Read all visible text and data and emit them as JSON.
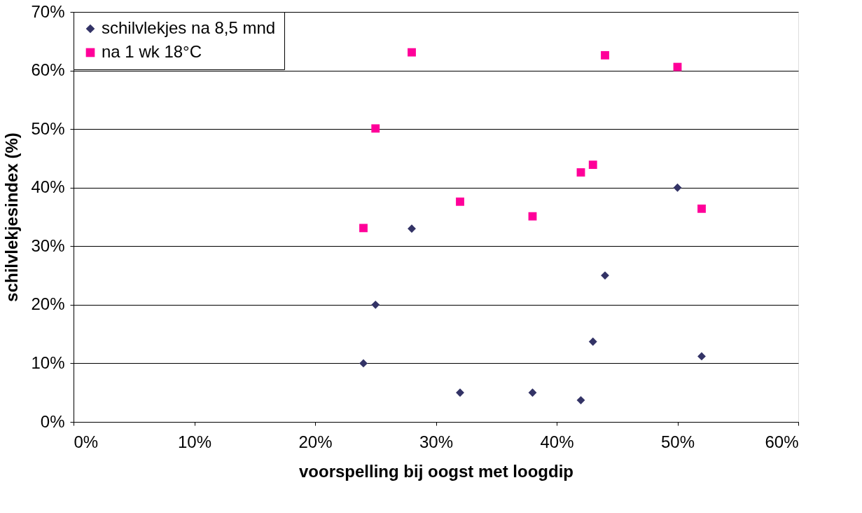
{
  "chart_data": {
    "type": "scatter",
    "xlabel": "voorspelling bij oogst met loogdip",
    "ylabel": "schilvlekjesindex (%)",
    "x": [
      24,
      25,
      28,
      32,
      38,
      42,
      43,
      44,
      50,
      52
    ],
    "series": [
      {
        "name": "schilvlekjes na 8,5 mnd",
        "color": "#333366",
        "marker": "diamond",
        "values": [
          10,
          20,
          33,
          5,
          5,
          3.7,
          13.7,
          25,
          40,
          11.2
        ]
      },
      {
        "name": "na 1 wk 18°C",
        "color": "#ff0099",
        "marker": "square",
        "values": [
          33.1,
          50.1,
          63.1,
          37.6,
          35.1,
          42.6,
          43.9,
          62.6,
          60.6,
          36.4
        ]
      }
    ],
    "xlim": [
      0,
      60
    ],
    "xticks": [
      {
        "value": 0,
        "label": "0%"
      },
      {
        "value": 10,
        "label": "10%"
      },
      {
        "value": 20,
        "label": "20%"
      },
      {
        "value": 30,
        "label": "30%"
      },
      {
        "value": 40,
        "label": "40%"
      },
      {
        "value": 50,
        "label": "50%"
      },
      {
        "value": 60,
        "label": "60%"
      }
    ],
    "ylim": [
      0,
      70
    ],
    "yticks": [
      {
        "value": 0,
        "label": "0%"
      },
      {
        "value": 10,
        "label": "10%"
      },
      {
        "value": 20,
        "label": "20%"
      },
      {
        "value": 30,
        "label": "30%"
      },
      {
        "value": 40,
        "label": "40%"
      },
      {
        "value": 50,
        "label": "50%"
      },
      {
        "value": 60,
        "label": "60%"
      },
      {
        "value": 70,
        "label": "70%"
      }
    ],
    "grid": "y",
    "legend": "top left"
  }
}
